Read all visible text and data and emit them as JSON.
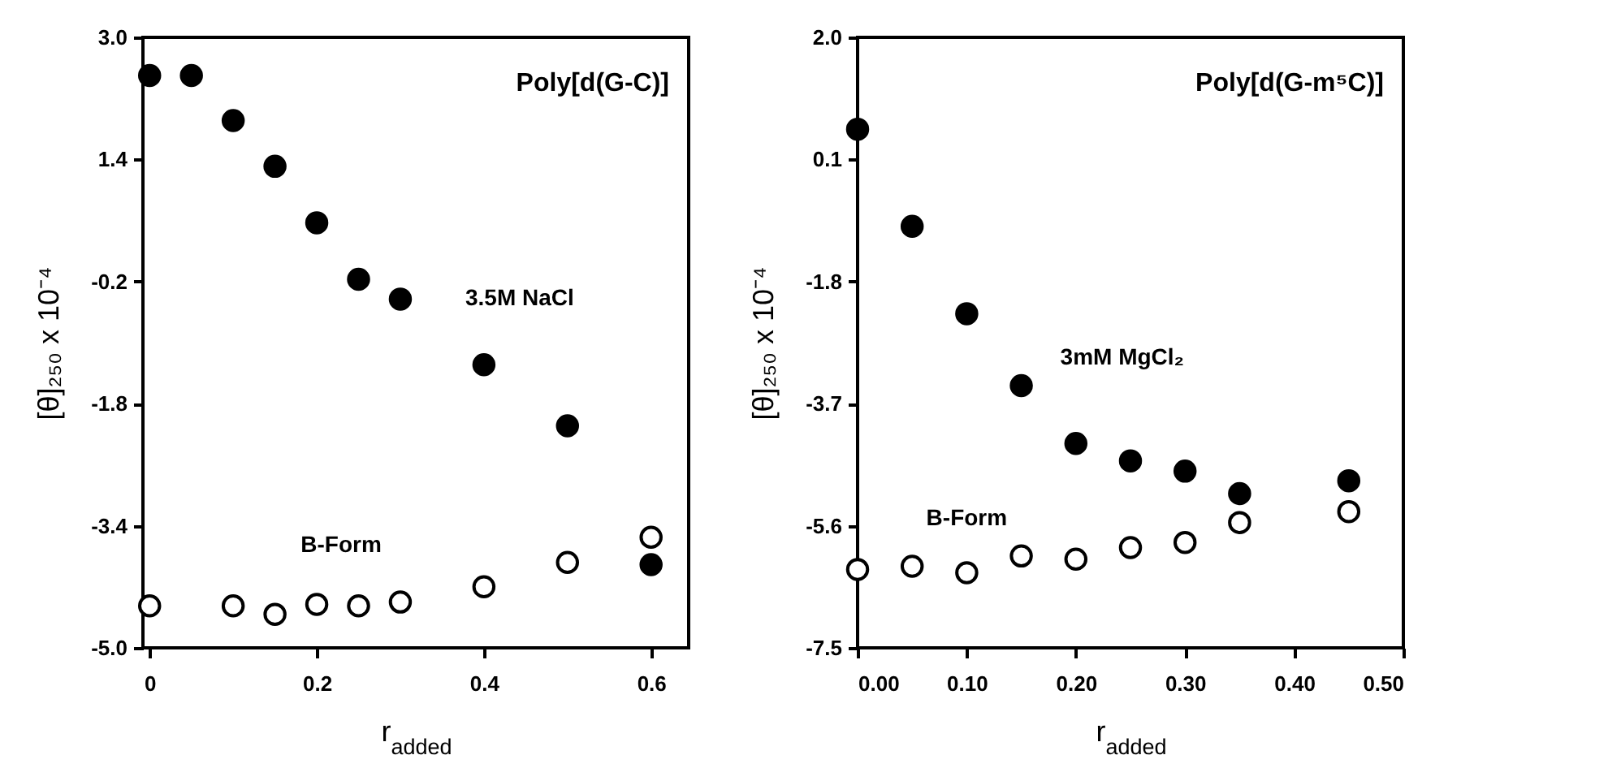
{
  "chart_data": [
    {
      "type": "scatter",
      "xlabel": "r$_{added}$",
      "ylabel": "[θ]₂₅₀ x 10⁻⁴",
      "annotations": [
        "Poly[d(G-C)]"
      ],
      "marker": "circle",
      "grid": false,
      "xlim": [
        -0.008,
        0.645
      ],
      "xticks": [
        0,
        0.2,
        0.4,
        0.6
      ],
      "ylim": [
        -5.0,
        3.0
      ],
      "yticks": [
        {
          "value": 3.0,
          "label": "3.0"
        },
        {
          "value": 1.4,
          "label": "1.4"
        },
        {
          "value": -0.2,
          "label": "-0.2"
        },
        {
          "value": -1.8,
          "label": "-1.8"
        },
        {
          "value": -3.4,
          "label": "-3.4"
        },
        {
          "value": -5.0,
          "label": "-5.0"
        }
      ],
      "series": [
        {
          "name": "3.5M NaCl",
          "color": "#000000",
          "x": [
            0,
            0.05,
            0.1,
            0.15,
            0.2,
            0.25,
            0.3,
            0.4,
            0.5,
            0.6
          ],
          "values": [
            2.5,
            2.5,
            1.91,
            1.31,
            0.57,
            -0.17,
            -0.43,
            -1.29,
            -2.09,
            -3.91
          ]
        },
        {
          "name": "B-Form",
          "color": "#ffffff",
          "x": [
            0,
            0.1,
            0.15,
            0.2,
            0.25,
            0.3,
            0.4,
            0.5,
            0.6
          ],
          "values": [
            -4.45,
            -4.45,
            -4.56,
            -4.43,
            -4.45,
            -4.4,
            -4.2,
            -3.88,
            -3.55
          ]
        }
      ]
    },
    {
      "type": "scatter",
      "xlabel": "r$_{added}$",
      "ylabel": "[θ]₂₅₀ x 10⁻⁴",
      "annotations": [
        "Poly[d(G-m⁵C)]"
      ],
      "marker": "circle",
      "grid": false,
      "xlim": [
        0,
        0.5
      ],
      "xticks": [
        {
          "value": 0,
          "label": "0.00"
        },
        {
          "value": 0.1,
          "label": "0.10"
        },
        {
          "value": 0.2,
          "label": "0.20"
        },
        {
          "value": 0.3,
          "label": "0.30"
        },
        {
          "value": 0.4,
          "label": "0.40"
        },
        {
          "value": 0.5,
          "label": "0.50"
        }
      ],
      "ylim": [
        -7.5,
        2.0
      ],
      "yticks": [
        {
          "value": 2.0,
          "label": "2.0"
        },
        {
          "value": 0.1,
          "label": "0.1"
        },
        {
          "value": -1.8,
          "label": "-1.8"
        },
        {
          "value": -3.7,
          "label": "-3.7"
        },
        {
          "value": -5.6,
          "label": "-5.6"
        },
        {
          "value": -7.5,
          "label": "-7.5"
        }
      ],
      "series": [
        {
          "name": "3mM MgCl₂",
          "color": "#000000",
          "x": [
            0,
            0.05,
            0.1,
            0.15,
            0.2,
            0.25,
            0.3,
            0.35,
            0.45
          ],
          "values": [
            0.57,
            -0.94,
            -2.3,
            -3.42,
            -4.32,
            -4.59,
            -4.75,
            -5.1,
            -4.9
          ]
        },
        {
          "name": "B-Form",
          "color": "#ffffff",
          "x": [
            0,
            0.05,
            0.1,
            0.15,
            0.2,
            0.25,
            0.3,
            0.35,
            0.45
          ],
          "values": [
            -6.28,
            -6.23,
            -6.33,
            -6.07,
            -6.12,
            -5.94,
            -5.86,
            -5.55,
            -5.38
          ]
        }
      ]
    }
  ]
}
